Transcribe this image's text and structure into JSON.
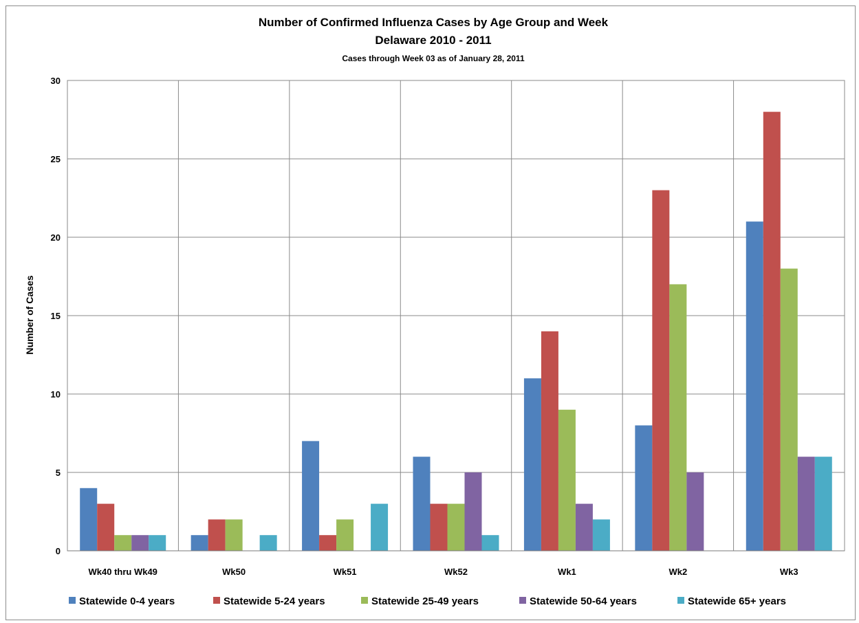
{
  "chart_data": {
    "type": "bar",
    "title": "Number of Confirmed Influenza Cases by Age Group and Week",
    "title_line2": "Delaware 2010 - 2011",
    "subtitle": "Cases through Week 03 as of January 28, 2011",
    "xlabel": "",
    "ylabel": "Number of Cases",
    "ylim": [
      0,
      30
    ],
    "yticks": [
      0,
      5,
      10,
      15,
      20,
      25,
      30
    ],
    "grid": true,
    "legend_position": "bottom",
    "categories": [
      "Wk40 thru Wk49",
      "Wk50",
      "Wk51",
      "Wk52",
      "Wk1",
      "Wk2",
      "Wk3"
    ],
    "series": [
      {
        "name": "Statewide 0-4 years",
        "color": "#4F81BD",
        "values": [
          4,
          1,
          7,
          6,
          11,
          8,
          21
        ]
      },
      {
        "name": "Statewide 5-24 years",
        "color": "#C0504D",
        "values": [
          3,
          2,
          1,
          3,
          14,
          23,
          28
        ]
      },
      {
        "name": "Statewide 25-49 years",
        "color": "#9BBB59",
        "values": [
          1,
          2,
          2,
          3,
          9,
          17,
          18
        ]
      },
      {
        "name": "Statewide 50-64 years",
        "color": "#8064A2",
        "values": [
          1,
          0,
          0,
          5,
          3,
          5,
          6
        ]
      },
      {
        "name": "Statewide 65+ years",
        "color": "#4BACC6",
        "values": [
          1,
          1,
          3,
          1,
          2,
          0,
          6
        ]
      }
    ]
  }
}
